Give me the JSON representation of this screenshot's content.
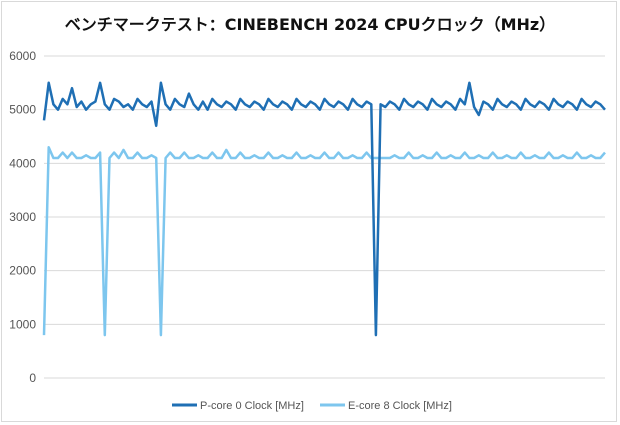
{
  "chart_data": {
    "type": "line",
    "title": "ベンチマークテスト：CINEBENCH 2024 CPUクロック（MHz）",
    "xlabel": "",
    "ylabel": "",
    "ylim": [
      0,
      6000
    ],
    "yticks": [
      "0",
      "1000",
      "2000",
      "3000",
      "4000",
      "5000",
      "6000"
    ],
    "grid": true,
    "legend_position": "bottom",
    "x": [
      0,
      1,
      2,
      3,
      4,
      5,
      6,
      7,
      8,
      9,
      10,
      11,
      12,
      13,
      14,
      15,
      16,
      17,
      18,
      19,
      20,
      21,
      22,
      23,
      24,
      25,
      26,
      27,
      28,
      29,
      30,
      31,
      32,
      33,
      34,
      35,
      36,
      37,
      38,
      39,
      40,
      41,
      42,
      43,
      44,
      45,
      46,
      47,
      48,
      49,
      50,
      51,
      52,
      53,
      54,
      55,
      56,
      57,
      58,
      59,
      60,
      61,
      62,
      63,
      64,
      65,
      66,
      67,
      68,
      69,
      70,
      71,
      72,
      73,
      74,
      75,
      76,
      77,
      78,
      79,
      80,
      81,
      82,
      83,
      84,
      85,
      86,
      87,
      88,
      89,
      90,
      91,
      92,
      93,
      94,
      95,
      96,
      97,
      98,
      99,
      100,
      101,
      102,
      103,
      104,
      105,
      106,
      107,
      108,
      109,
      110,
      111,
      112,
      113,
      114,
      115,
      116,
      117,
      118,
      119,
      120
    ],
    "series": [
      {
        "name": "P-core 0 Clock [MHz]",
        "color": "#1f6fb4",
        "values": [
          4800,
          5500,
          5100,
          5000,
          5200,
          5100,
          5400,
          5050,
          5150,
          5000,
          5100,
          5150,
          5500,
          5100,
          5000,
          5200,
          5150,
          5050,
          5100,
          5000,
          5200,
          5100,
          5050,
          5150,
          4700,
          5500,
          5100,
          5000,
          5200,
          5100,
          5050,
          5300,
          5100,
          5000,
          5150,
          5000,
          5200,
          5100,
          5050,
          5150,
          5100,
          5000,
          5200,
          5100,
          5050,
          5150,
          5100,
          5000,
          5200,
          5100,
          5050,
          5150,
          5100,
          5000,
          5200,
          5100,
          5050,
          5150,
          5100,
          5000,
          5200,
          5100,
          5050,
          5150,
          5100,
          5000,
          5200,
          5100,
          5050,
          5150,
          5100,
          800,
          5100,
          5050,
          5150,
          5100,
          5000,
          5200,
          5100,
          5050,
          5150,
          5100,
          5000,
          5200,
          5100,
          5050,
          5150,
          5100,
          5000,
          5200,
          5100,
          5500,
          5050,
          4900,
          5150,
          5100,
          5000,
          5200,
          5100,
          5050,
          5150,
          5100,
          5000,
          5200,
          5100,
          5050,
          5150,
          5100,
          5000,
          5200,
          5100,
          5050,
          5150,
          5100,
          5000,
          5200,
          5100,
          5050,
          5150,
          5100,
          5000
        ]
      },
      {
        "name": "E-core 8 Clock [MHz]",
        "color": "#7dc6ee",
        "values": [
          800,
          4300,
          4100,
          4100,
          4200,
          4100,
          4200,
          4100,
          4100,
          4150,
          4100,
          4100,
          4200,
          800,
          4100,
          4200,
          4100,
          4250,
          4100,
          4100,
          4200,
          4100,
          4100,
          4150,
          4100,
          800,
          4100,
          4200,
          4100,
          4100,
          4200,
          4100,
          4100,
          4150,
          4100,
          4100,
          4200,
          4100,
          4100,
          4250,
          4100,
          4100,
          4200,
          4100,
          4100,
          4150,
          4100,
          4100,
          4200,
          4100,
          4100,
          4150,
          4100,
          4100,
          4200,
          4100,
          4100,
          4150,
          4100,
          4100,
          4200,
          4100,
          4100,
          4200,
          4100,
          4100,
          4150,
          4100,
          4100,
          4200,
          4100,
          4100,
          4100,
          4100,
          4100,
          4150,
          4100,
          4100,
          4200,
          4100,
          4100,
          4150,
          4100,
          4100,
          4200,
          4100,
          4100,
          4150,
          4100,
          4100,
          4200,
          4100,
          4100,
          4150,
          4100,
          4100,
          4200,
          4100,
          4100,
          4150,
          4100,
          4100,
          4200,
          4100,
          4100,
          4150,
          4100,
          4100,
          4200,
          4100,
          4100,
          4150,
          4100,
          4100,
          4200,
          4100,
          4100,
          4150,
          4100,
          4100,
          4200
        ]
      }
    ]
  }
}
